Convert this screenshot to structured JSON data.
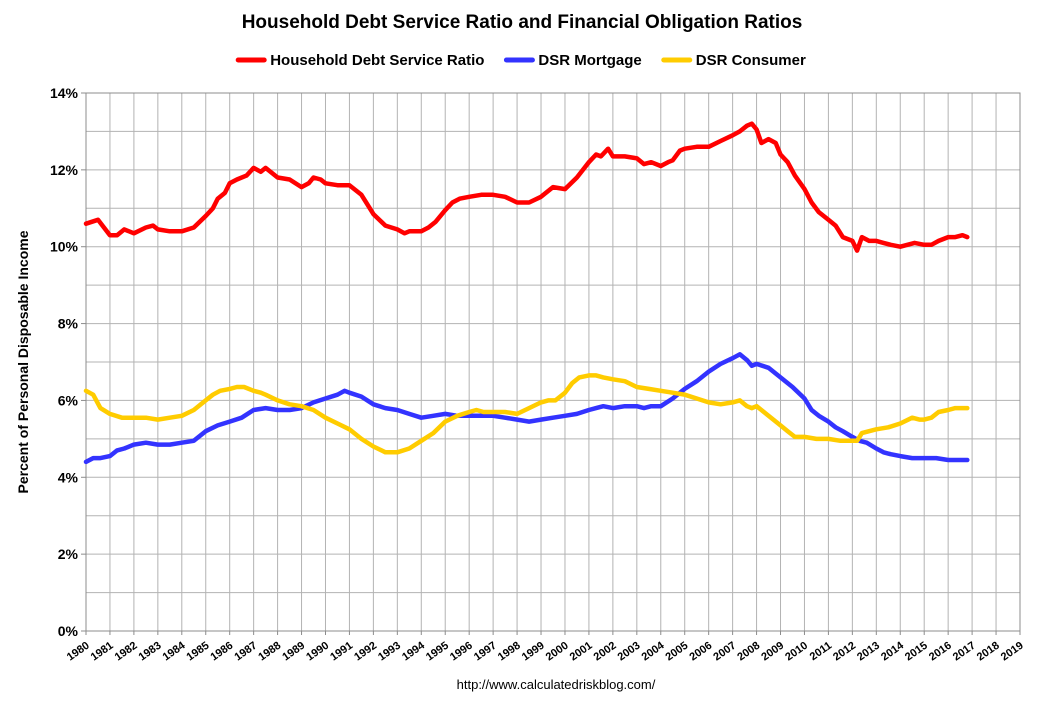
{
  "chart_data": {
    "type": "line",
    "title": "Household Debt Service Ratio and Financial Obligation Ratios",
    "ylabel": "Percent of Personal Disposable Income",
    "xlabel": "",
    "source": "http://www.calculatedriskblog.com/",
    "ylim": [
      0,
      14
    ],
    "xlim": [
      1980,
      2019
    ],
    "yticks": [
      "0%",
      "2%",
      "4%",
      "6%",
      "8%",
      "10%",
      "12%",
      "14%"
    ],
    "xticks": [
      "1980",
      "1981",
      "1982",
      "1983",
      "1984",
      "1985",
      "1986",
      "1987",
      "1988",
      "1989",
      "1990",
      "1991",
      "1992",
      "1993",
      "1994",
      "1995",
      "1996",
      "1997",
      "1998",
      "1999",
      "2000",
      "2001",
      "2002",
      "2003",
      "2004",
      "2005",
      "2006",
      "2007",
      "2008",
      "2009",
      "2010",
      "2011",
      "2012",
      "2013",
      "2014",
      "2015",
      "2016",
      "2017",
      "2018",
      "2019"
    ],
    "grid": true,
    "legend_position": "top",
    "series": [
      {
        "name": "Household Debt Service Ratio",
        "color": "#ff0000",
        "points": [
          [
            1980.0,
            10.6
          ],
          [
            1980.5,
            10.7
          ],
          [
            1981.0,
            10.3
          ],
          [
            1981.3,
            10.3
          ],
          [
            1981.6,
            10.45
          ],
          [
            1982.0,
            10.35
          ],
          [
            1982.5,
            10.5
          ],
          [
            1982.8,
            10.55
          ],
          [
            1983.0,
            10.45
          ],
          [
            1983.5,
            10.4
          ],
          [
            1984.0,
            10.4
          ],
          [
            1984.5,
            10.5
          ],
          [
            1985.0,
            10.8
          ],
          [
            1985.3,
            11.0
          ],
          [
            1985.5,
            11.25
          ],
          [
            1985.8,
            11.4
          ],
          [
            1986.0,
            11.65
          ],
          [
            1986.3,
            11.75
          ],
          [
            1986.7,
            11.85
          ],
          [
            1987.0,
            12.05
          ],
          [
            1987.3,
            11.95
          ],
          [
            1987.5,
            12.05
          ],
          [
            1988.0,
            11.8
          ],
          [
            1988.5,
            11.75
          ],
          [
            1989.0,
            11.55
          ],
          [
            1989.3,
            11.65
          ],
          [
            1989.5,
            11.8
          ],
          [
            1989.8,
            11.75
          ],
          [
            1990.0,
            11.65
          ],
          [
            1990.5,
            11.6
          ],
          [
            1991.0,
            11.6
          ],
          [
            1991.5,
            11.35
          ],
          [
            1992.0,
            10.85
          ],
          [
            1992.5,
            10.55
          ],
          [
            1993.0,
            10.45
          ],
          [
            1993.3,
            10.35
          ],
          [
            1993.5,
            10.4
          ],
          [
            1994.0,
            10.4
          ],
          [
            1994.3,
            10.5
          ],
          [
            1994.6,
            10.65
          ],
          [
            1995.0,
            10.95
          ],
          [
            1995.3,
            11.15
          ],
          [
            1995.6,
            11.25
          ],
          [
            1996.0,
            11.3
          ],
          [
            1996.5,
            11.35
          ],
          [
            1997.0,
            11.35
          ],
          [
            1997.5,
            11.3
          ],
          [
            1998.0,
            11.15
          ],
          [
            1998.5,
            11.15
          ],
          [
            1999.0,
            11.3
          ],
          [
            1999.5,
            11.55
          ],
          [
            2000.0,
            11.5
          ],
          [
            2000.5,
            11.8
          ],
          [
            2001.0,
            12.2
          ],
          [
            2001.3,
            12.4
          ],
          [
            2001.5,
            12.35
          ],
          [
            2001.8,
            12.55
          ],
          [
            2002.0,
            12.35
          ],
          [
            2002.5,
            12.35
          ],
          [
            2003.0,
            12.3
          ],
          [
            2003.3,
            12.15
          ],
          [
            2003.6,
            12.2
          ],
          [
            2004.0,
            12.1
          ],
          [
            2004.3,
            12.2
          ],
          [
            2004.5,
            12.25
          ],
          [
            2004.8,
            12.5
          ],
          [
            2005.0,
            12.55
          ],
          [
            2005.5,
            12.6
          ],
          [
            2006.0,
            12.6
          ],
          [
            2006.5,
            12.75
          ],
          [
            2007.0,
            12.9
          ],
          [
            2007.3,
            13.0
          ],
          [
            2007.6,
            13.15
          ],
          [
            2007.8,
            13.2
          ],
          [
            2008.0,
            13.05
          ],
          [
            2008.2,
            12.7
          ],
          [
            2008.5,
            12.8
          ],
          [
            2008.8,
            12.7
          ],
          [
            2009.0,
            12.4
          ],
          [
            2009.3,
            12.2
          ],
          [
            2009.6,
            11.85
          ],
          [
            2010.0,
            11.5
          ],
          [
            2010.3,
            11.15
          ],
          [
            2010.6,
            10.9
          ],
          [
            2011.0,
            10.7
          ],
          [
            2011.3,
            10.55
          ],
          [
            2011.6,
            10.25
          ],
          [
            2012.0,
            10.15
          ],
          [
            2012.2,
            9.9
          ],
          [
            2012.4,
            10.25
          ],
          [
            2012.7,
            10.15
          ],
          [
            2013.0,
            10.15
          ],
          [
            2013.3,
            10.1
          ],
          [
            2013.6,
            10.05
          ],
          [
            2014.0,
            10.0
          ],
          [
            2014.3,
            10.05
          ],
          [
            2014.6,
            10.1
          ],
          [
            2015.0,
            10.05
          ],
          [
            2015.3,
            10.05
          ],
          [
            2015.6,
            10.15
          ],
          [
            2016.0,
            10.25
          ],
          [
            2016.3,
            10.25
          ],
          [
            2016.6,
            10.3
          ],
          [
            2016.8,
            10.25
          ]
        ]
      },
      {
        "name": "DSR Mortgage",
        "color": "#3333ff",
        "points": [
          [
            1980.0,
            4.4
          ],
          [
            1980.3,
            4.5
          ],
          [
            1980.6,
            4.5
          ],
          [
            1981.0,
            4.55
          ],
          [
            1981.3,
            4.7
          ],
          [
            1981.6,
            4.75
          ],
          [
            1982.0,
            4.85
          ],
          [
            1982.5,
            4.9
          ],
          [
            1983.0,
            4.85
          ],
          [
            1983.5,
            4.85
          ],
          [
            1984.0,
            4.9
          ],
          [
            1984.5,
            4.95
          ],
          [
            1985.0,
            5.2
          ],
          [
            1985.5,
            5.35
          ],
          [
            1986.0,
            5.45
          ],
          [
            1986.5,
            5.55
          ],
          [
            1987.0,
            5.75
          ],
          [
            1987.5,
            5.8
          ],
          [
            1988.0,
            5.75
          ],
          [
            1988.5,
            5.75
          ],
          [
            1989.0,
            5.8
          ],
          [
            1989.5,
            5.95
          ],
          [
            1990.0,
            6.05
          ],
          [
            1990.5,
            6.15
          ],
          [
            1990.8,
            6.25
          ],
          [
            1991.0,
            6.2
          ],
          [
            1991.5,
            6.1
          ],
          [
            1992.0,
            5.9
          ],
          [
            1992.5,
            5.8
          ],
          [
            1993.0,
            5.75
          ],
          [
            1993.5,
            5.65
          ],
          [
            1994.0,
            5.55
          ],
          [
            1994.5,
            5.6
          ],
          [
            1995.0,
            5.65
          ],
          [
            1995.5,
            5.6
          ],
          [
            1996.0,
            5.6
          ],
          [
            1996.5,
            5.6
          ],
          [
            1997.0,
            5.6
          ],
          [
            1997.5,
            5.55
          ],
          [
            1998.0,
            5.5
          ],
          [
            1998.5,
            5.45
          ],
          [
            1999.0,
            5.5
          ],
          [
            1999.5,
            5.55
          ],
          [
            2000.0,
            5.6
          ],
          [
            2000.5,
            5.65
          ],
          [
            2001.0,
            5.75
          ],
          [
            2001.3,
            5.8
          ],
          [
            2001.6,
            5.85
          ],
          [
            2002.0,
            5.8
          ],
          [
            2002.5,
            5.85
          ],
          [
            2003.0,
            5.85
          ],
          [
            2003.3,
            5.8
          ],
          [
            2003.6,
            5.85
          ],
          [
            2004.0,
            5.85
          ],
          [
            2004.5,
            6.05
          ],
          [
            2005.0,
            6.3
          ],
          [
            2005.5,
            6.5
          ],
          [
            2006.0,
            6.75
          ],
          [
            2006.5,
            6.95
          ],
          [
            2007.0,
            7.1
          ],
          [
            2007.3,
            7.2
          ],
          [
            2007.6,
            7.05
          ],
          [
            2007.8,
            6.9
          ],
          [
            2008.0,
            6.95
          ],
          [
            2008.5,
            6.85
          ],
          [
            2009.0,
            6.6
          ],
          [
            2009.5,
            6.35
          ],
          [
            2010.0,
            6.05
          ],
          [
            2010.3,
            5.75
          ],
          [
            2010.6,
            5.6
          ],
          [
            2011.0,
            5.45
          ],
          [
            2011.3,
            5.3
          ],
          [
            2011.6,
            5.2
          ],
          [
            2012.0,
            5.05
          ],
          [
            2012.3,
            4.95
          ],
          [
            2012.6,
            4.9
          ],
          [
            2013.0,
            4.75
          ],
          [
            2013.3,
            4.65
          ],
          [
            2013.6,
            4.6
          ],
          [
            2014.0,
            4.55
          ],
          [
            2014.5,
            4.5
          ],
          [
            2015.0,
            4.5
          ],
          [
            2015.5,
            4.5
          ],
          [
            2016.0,
            4.45
          ],
          [
            2016.3,
            4.45
          ],
          [
            2016.6,
            4.45
          ],
          [
            2016.8,
            4.45
          ]
        ]
      },
      {
        "name": "DSR Consumer",
        "color": "#ffcc00",
        "points": [
          [
            1980.0,
            6.25
          ],
          [
            1980.3,
            6.15
          ],
          [
            1980.6,
            5.8
          ],
          [
            1981.0,
            5.65
          ],
          [
            1981.5,
            5.55
          ],
          [
            1982.0,
            5.55
          ],
          [
            1982.5,
            5.55
          ],
          [
            1983.0,
            5.5
          ],
          [
            1983.5,
            5.55
          ],
          [
            1984.0,
            5.6
          ],
          [
            1984.5,
            5.75
          ],
          [
            1985.0,
            6.0
          ],
          [
            1985.3,
            6.15
          ],
          [
            1985.6,
            6.25
          ],
          [
            1986.0,
            6.3
          ],
          [
            1986.3,
            6.35
          ],
          [
            1986.6,
            6.35
          ],
          [
            1987.0,
            6.25
          ],
          [
            1987.3,
            6.2
          ],
          [
            1987.5,
            6.15
          ],
          [
            1988.0,
            6.0
          ],
          [
            1988.5,
            5.9
          ],
          [
            1989.0,
            5.85
          ],
          [
            1989.5,
            5.75
          ],
          [
            1990.0,
            5.55
          ],
          [
            1990.5,
            5.4
          ],
          [
            1991.0,
            5.25
          ],
          [
            1991.5,
            5.0
          ],
          [
            1992.0,
            4.8
          ],
          [
            1992.5,
            4.65
          ],
          [
            1993.0,
            4.65
          ],
          [
            1993.5,
            4.75
          ],
          [
            1994.0,
            4.95
          ],
          [
            1994.5,
            5.15
          ],
          [
            1995.0,
            5.45
          ],
          [
            1995.5,
            5.6
          ],
          [
            1996.0,
            5.7
          ],
          [
            1996.3,
            5.75
          ],
          [
            1996.6,
            5.7
          ],
          [
            1997.0,
            5.7
          ],
          [
            1997.5,
            5.7
          ],
          [
            1998.0,
            5.65
          ],
          [
            1998.5,
            5.8
          ],
          [
            1999.0,
            5.95
          ],
          [
            1999.3,
            6.0
          ],
          [
            1999.6,
            6.0
          ],
          [
            2000.0,
            6.2
          ],
          [
            2000.3,
            6.45
          ],
          [
            2000.6,
            6.6
          ],
          [
            2001.0,
            6.65
          ],
          [
            2001.3,
            6.65
          ],
          [
            2001.6,
            6.6
          ],
          [
            2002.0,
            6.55
          ],
          [
            2002.5,
            6.5
          ],
          [
            2003.0,
            6.35
          ],
          [
            2003.5,
            6.3
          ],
          [
            2004.0,
            6.25
          ],
          [
            2004.5,
            6.2
          ],
          [
            2005.0,
            6.15
          ],
          [
            2005.5,
            6.05
          ],
          [
            2006.0,
            5.95
          ],
          [
            2006.5,
            5.9
          ],
          [
            2007.0,
            5.95
          ],
          [
            2007.3,
            6.0
          ],
          [
            2007.6,
            5.85
          ],
          [
            2007.8,
            5.8
          ],
          [
            2008.0,
            5.85
          ],
          [
            2008.2,
            5.75
          ],
          [
            2008.5,
            5.6
          ],
          [
            2009.0,
            5.35
          ],
          [
            2009.3,
            5.2
          ],
          [
            2009.6,
            5.05
          ],
          [
            2010.0,
            5.05
          ],
          [
            2010.5,
            5.0
          ],
          [
            2011.0,
            5.0
          ],
          [
            2011.5,
            4.95
          ],
          [
            2012.0,
            4.95
          ],
          [
            2012.2,
            4.95
          ],
          [
            2012.4,
            5.15
          ],
          [
            2012.7,
            5.2
          ],
          [
            2013.0,
            5.25
          ],
          [
            2013.5,
            5.3
          ],
          [
            2014.0,
            5.4
          ],
          [
            2014.5,
            5.55
          ],
          [
            2014.8,
            5.5
          ],
          [
            2015.0,
            5.5
          ],
          [
            2015.3,
            5.55
          ],
          [
            2015.6,
            5.7
          ],
          [
            2016.0,
            5.75
          ],
          [
            2016.3,
            5.8
          ],
          [
            2016.6,
            5.8
          ],
          [
            2016.8,
            5.8
          ]
        ]
      }
    ]
  }
}
